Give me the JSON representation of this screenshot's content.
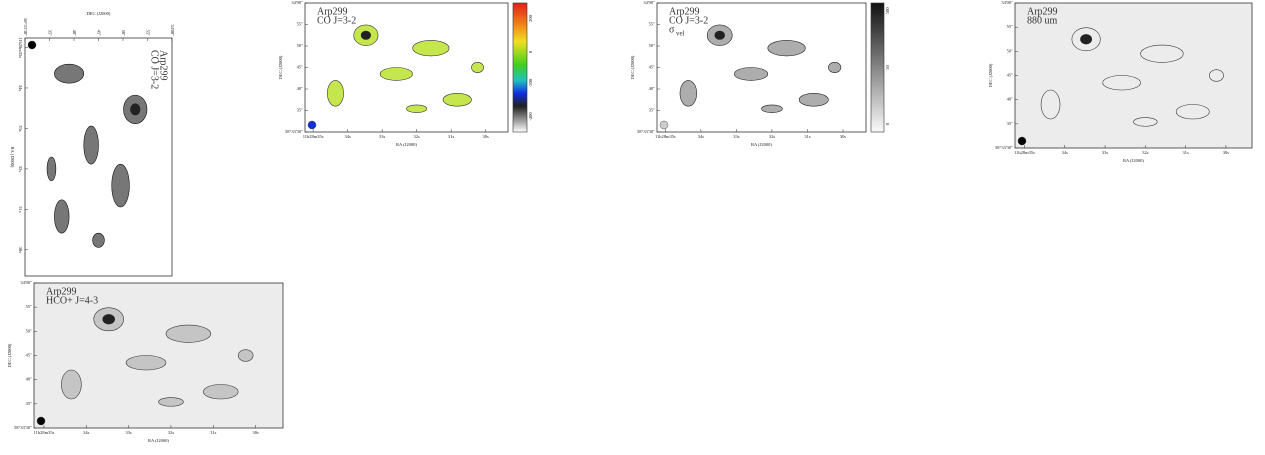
{
  "panels": [
    {
      "title": [
        "Arp299",
        "CO J=3-2"
      ],
      "xlabel": "RA (J2000)",
      "ylabel": "DEC (J2000)",
      "xticks": [
        "11h28m35s",
        "34s",
        "33s",
        "32s",
        "31s",
        "30s"
      ],
      "yticks": [
        "34'00\"",
        "55\"",
        "50\"",
        "45\"",
        "40\"",
        "35\"",
        "58°33'30\""
      ]
    },
    {
      "title": [
        "Arp299",
        "CO J=3-2"
      ],
      "xlabel": "RA (J2000)",
      "ylabel": "DEC (J2000)",
      "xticks": [
        "11h28m35s",
        "34s",
        "33s",
        "32s",
        "31s",
        "30s"
      ],
      "yticks": [
        "34'00\"",
        "55\"",
        "50\"",
        "45\"",
        "40\"",
        "35\"",
        "58°33'30\""
      ],
      "colorbar_ticks": [
        "200",
        "0",
        "-200",
        "-400"
      ]
    },
    {
      "title": [
        "Arp299",
        "CO J=3-2",
        "σ"
      ],
      "title_subscript": "vel",
      "xlabel": "RA (J2000)",
      "ylabel": "DEC (J2000)",
      "xticks": [
        "11h28m35s",
        "34s",
        "33s",
        "32s",
        "31s",
        "30s"
      ],
      "yticks": [
        "34'00\"",
        "55\"",
        "50\"",
        "45\"",
        "40\"",
        "35\"",
        "58°33'30\""
      ],
      "colorbar_ticks": [
        "100",
        "50",
        "0"
      ]
    },
    {
      "title": [
        "Arp299",
        "880 um"
      ],
      "xlabel": "RA (J2000)",
      "ylabel": "DEC (J2000)",
      "xticks": [
        "11h28m35s",
        "34s",
        "33s",
        "32s",
        "31s",
        "30s"
      ],
      "yticks": [
        "34'00\"",
        "55\"",
        "50\"",
        "45\"",
        "40\"",
        "35\"",
        "58°33'30\""
      ]
    },
    {
      "title": [
        "Arp299",
        "HCO+ J=4-3"
      ],
      "xlabel": "RA (J2000)",
      "ylabel": "DEC (J2000)",
      "xticks": [
        "11h28m35s",
        "34s",
        "33s",
        "32s",
        "31s",
        "30s"
      ],
      "yticks": [
        "34'00\"",
        "55\"",
        "50\"",
        "45\"",
        "40\"",
        "35\"",
        "58°33'30\""
      ]
    }
  ]
}
